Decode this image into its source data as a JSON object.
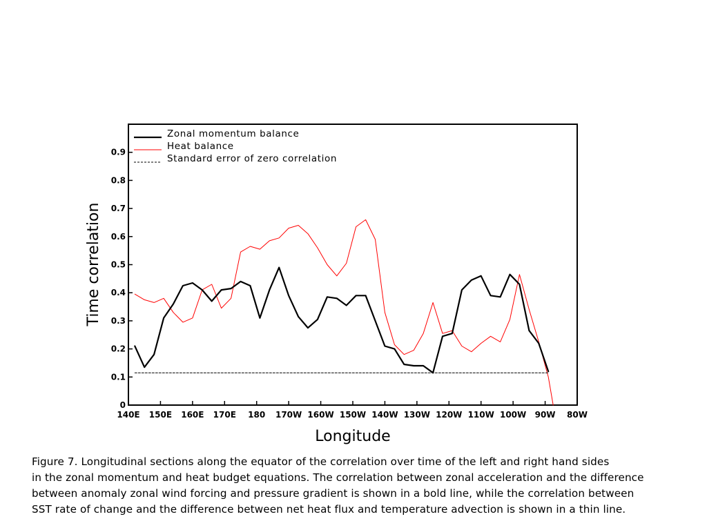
{
  "caption": {
    "lines": [
      "Figure 7. Longitudinal sections along the equator of the correlation over time of the left and right hand sides",
      "in the zonal momentum and heat budget equations. The correlation between zonal acceleration and the difference",
      "between anomaly zonal wind forcing and pressure gradient is shown in a bold line, while the correlation between",
      "SST rate of change and the difference between net heat flux and temperature advection is shown in a thin line."
    ]
  },
  "chart_data": {
    "type": "line",
    "xlabel": "Longitude",
    "ylabel": "Time correlation",
    "xlim": [
      140,
      280
    ],
    "ylim": [
      0,
      1.0
    ],
    "x_ticks": [
      {
        "value": 140,
        "label": "140E"
      },
      {
        "value": 150,
        "label": "150E"
      },
      {
        "value": 160,
        "label": "160E"
      },
      {
        "value": 170,
        "label": "170E"
      },
      {
        "value": 180,
        "label": "180"
      },
      {
        "value": 190,
        "label": "170W"
      },
      {
        "value": 200,
        "label": "160W"
      },
      {
        "value": 210,
        "label": "150W"
      },
      {
        "value": 220,
        "label": "140W"
      },
      {
        "value": 230,
        "label": "130W"
      },
      {
        "value": 240,
        "label": "120W"
      },
      {
        "value": 250,
        "label": "110W"
      },
      {
        "value": 260,
        "label": "100W"
      },
      {
        "value": 270,
        "label": "90W"
      },
      {
        "value": 280,
        "label": "80W"
      }
    ],
    "y_ticks": [
      {
        "value": 0,
        "label": "0"
      },
      {
        "value": 0.1,
        "label": "0.1"
      },
      {
        "value": 0.2,
        "label": "0.2"
      },
      {
        "value": 0.3,
        "label": "0.3"
      },
      {
        "value": 0.4,
        "label": "0.4"
      },
      {
        "value": 0.5,
        "label": "0.5"
      },
      {
        "value": 0.6,
        "label": "0.6"
      },
      {
        "value": 0.7,
        "label": "0.7"
      },
      {
        "value": 0.8,
        "label": "0.8"
      },
      {
        "value": 0.9,
        "label": "0.9"
      }
    ],
    "legend_position": "top-left",
    "grid": false,
    "series": [
      {
        "name": "Zonal momentum balance",
        "color": "#000000",
        "style": "bold",
        "x": [
          142,
          145,
          148,
          151,
          154,
          157,
          160,
          163,
          166,
          169,
          172,
          175,
          178,
          181,
          184,
          187,
          190,
          193,
          196,
          199,
          202,
          205,
          208,
          211,
          214,
          217,
          220,
          223,
          226,
          229,
          232,
          235,
          238,
          241,
          244,
          247,
          250,
          253,
          256,
          259,
          262,
          265,
          268,
          271
        ],
        "y": [
          0.21,
          0.135,
          0.18,
          0.31,
          0.36,
          0.425,
          0.435,
          0.41,
          0.37,
          0.41,
          0.415,
          0.44,
          0.425,
          0.31,
          0.41,
          0.49,
          0.39,
          0.315,
          0.275,
          0.305,
          0.385,
          0.38,
          0.355,
          0.39,
          0.39,
          0.3,
          0.21,
          0.2,
          0.145,
          0.14,
          0.14,
          0.115,
          0.245,
          0.255,
          0.41,
          0.445,
          0.46,
          0.39,
          0.385,
          0.465,
          0.43,
          0.265,
          0.22,
          0.12
        ]
      },
      {
        "name": "Heat balance",
        "color": "#ff0000",
        "style": "thin",
        "x": [
          142,
          145,
          148,
          151,
          154,
          157,
          160,
          163,
          166,
          169,
          172,
          175,
          178,
          181,
          184,
          187,
          190,
          193,
          196,
          199,
          202,
          205,
          208,
          211,
          214,
          217,
          220,
          223,
          226,
          229,
          232,
          235,
          238,
          241,
          244,
          247,
          250,
          253,
          256,
          259,
          262,
          265,
          268,
          271,
          272.5
        ],
        "y": [
          0.395,
          0.375,
          0.365,
          0.38,
          0.33,
          0.295,
          0.31,
          0.41,
          0.43,
          0.345,
          0.38,
          0.545,
          0.565,
          0.555,
          0.585,
          0.595,
          0.63,
          0.64,
          0.61,
          0.56,
          0.5,
          0.46,
          0.505,
          0.635,
          0.66,
          0.59,
          0.33,
          0.215,
          0.18,
          0.195,
          0.255,
          0.365,
          0.255,
          0.265,
          0.21,
          0.19,
          0.22,
          0.245,
          0.225,
          0.305,
          0.465,
          0.34,
          0.225,
          0.1,
          0
        ]
      },
      {
        "name": "Standard error of zero correlation",
        "color": "#000000",
        "style": "dashed",
        "x": [
          142,
          271
        ],
        "y": [
          0.115,
          0.115
        ]
      }
    ]
  }
}
